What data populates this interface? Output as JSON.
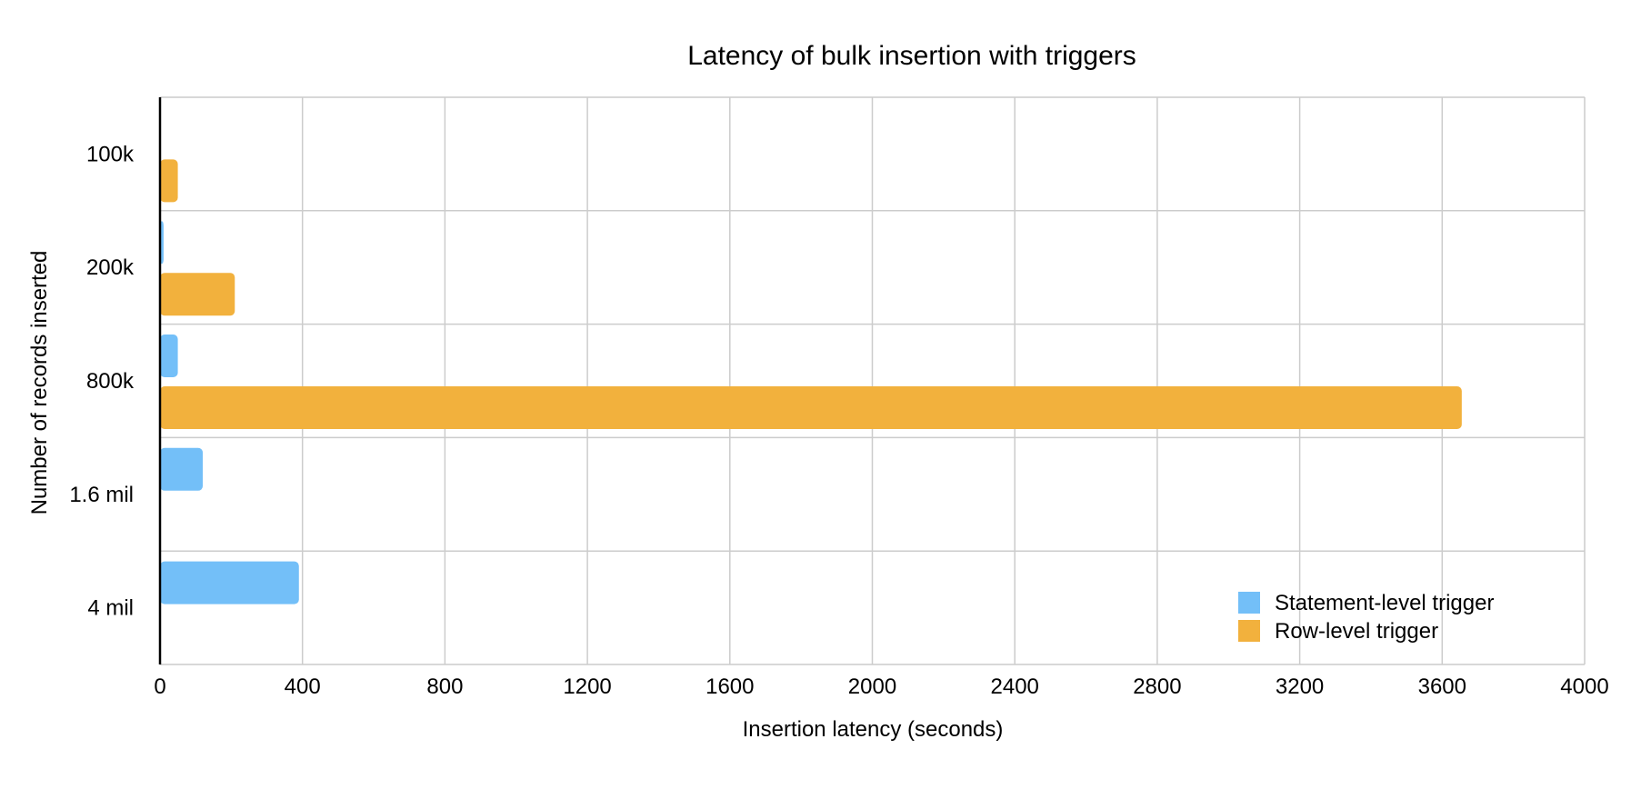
{
  "chart_data": {
    "type": "bar",
    "orientation": "horizontal",
    "title": "Latency of bulk insertion with triggers",
    "xlabel": "Insertion latency (seconds)",
    "ylabel": "Number of records inserted",
    "categories": [
      "100k",
      "200k",
      "800k",
      "1.6 mil",
      "4 mil"
    ],
    "xlim": [
      0,
      4000
    ],
    "xticks": [
      "0",
      "400",
      "800",
      "1200",
      "1600",
      "2000",
      "2400",
      "2800",
      "3200",
      "3600",
      "4000"
    ],
    "grid": true,
    "legend_position": "bottom-right",
    "series": [
      {
        "name": "Statement-level trigger",
        "color": "#73BFF8",
        "values": [
          1,
          10,
          50,
          120,
          390
        ]
      },
      {
        "name": "Row-level trigger",
        "color": "#F2B13D",
        "values": [
          50,
          210,
          3655,
          null,
          null
        ]
      }
    ]
  }
}
